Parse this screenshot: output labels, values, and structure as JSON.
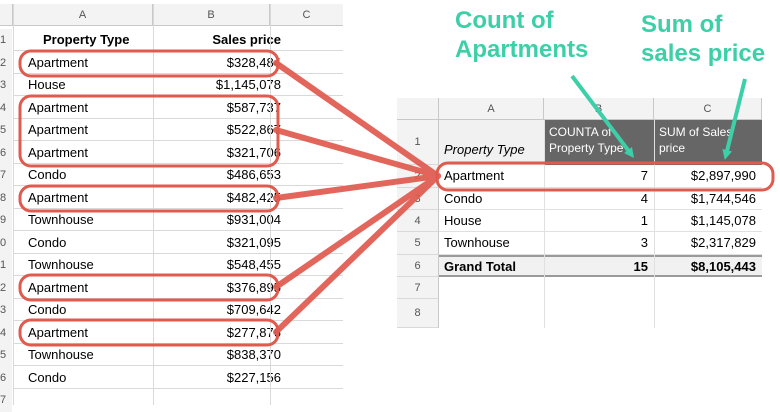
{
  "left_sheet": {
    "columns": [
      "A",
      "B",
      "C"
    ],
    "row_numbers": [
      "1",
      "2",
      "3",
      "4",
      "5",
      "6",
      "7",
      "8",
      "9",
      "0",
      "1",
      "2",
      "3",
      "4",
      "5",
      "6",
      "7"
    ],
    "header": {
      "property_type": "Property Type",
      "sales_price": "Sales price"
    },
    "rows": [
      {
        "type": "Apartment",
        "price": "$328,484"
      },
      {
        "type": "House",
        "price": "$1,145,078"
      },
      {
        "type": "Apartment",
        "price": "$587,737"
      },
      {
        "type": "Apartment",
        "price": "$522,867"
      },
      {
        "type": "Apartment",
        "price": "$321,706"
      },
      {
        "type": "Condo",
        "price": "$486,653"
      },
      {
        "type": "Apartment",
        "price": "$482,425"
      },
      {
        "type": "Townhouse",
        "price": "$931,004"
      },
      {
        "type": "Condo",
        "price": "$321,095"
      },
      {
        "type": "Townhouse",
        "price": "$548,455"
      },
      {
        "type": "Apartment",
        "price": "$376,895"
      },
      {
        "type": "Condo",
        "price": "$709,642"
      },
      {
        "type": "Apartment",
        "price": "$277,876"
      },
      {
        "type": "Townhouse",
        "price": "$838,370"
      },
      {
        "type": "Condo",
        "price": "$227,156"
      }
    ]
  },
  "pivot": {
    "columns": [
      "A",
      "B",
      "C"
    ],
    "row_numbers": [
      "1",
      "2",
      "3",
      "4",
      "5",
      "6",
      "7",
      "8"
    ],
    "header": {
      "type": "Property Type",
      "count": "COUNTA of Property Type",
      "sum": "SUM of Sales price"
    },
    "rows": [
      {
        "type": "Apartment",
        "count": "7",
        "sum": "$2,897,990"
      },
      {
        "type": "Condo",
        "count": "4",
        "sum": "$1,744,546"
      },
      {
        "type": "House",
        "count": "1",
        "sum": "$1,145,078"
      },
      {
        "type": "Townhouse",
        "count": "3",
        "sum": "$2,317,829"
      }
    ],
    "total": {
      "label": "Grand Total",
      "count": "15",
      "sum": "$8,105,443"
    }
  },
  "annotations": {
    "count_label_line1": "Count of",
    "count_label_line2": "Apartments",
    "sum_label_line1": "Sum of",
    "sum_label_line2": "sales price"
  },
  "colors": {
    "highlight": "#e05a4e",
    "arrow": "#3ccfa8",
    "pivot_header": "#666666"
  }
}
